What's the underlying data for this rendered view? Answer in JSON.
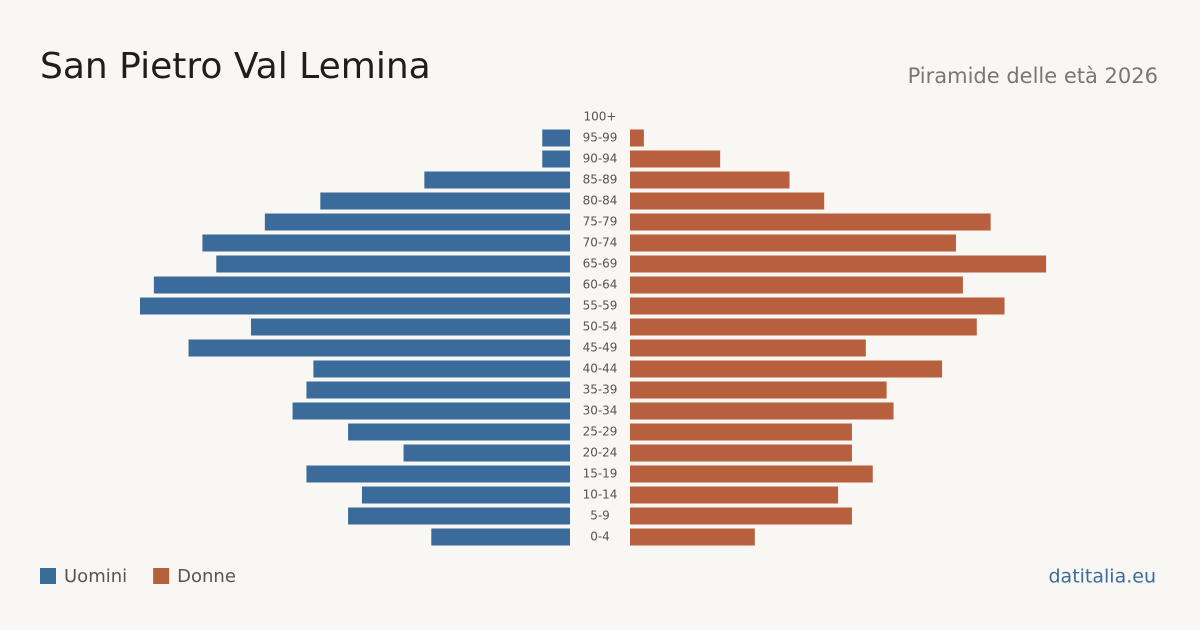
{
  "chart_data": {
    "type": "pyramid",
    "title": "San Pietro Val Lemina",
    "subtitle": "Piramide delle età 2026",
    "source": "datitalia.eu",
    "categories": [
      "100+",
      "95-99",
      "90-94",
      "85-89",
      "80-84",
      "75-79",
      "70-74",
      "65-69",
      "60-64",
      "55-59",
      "50-54",
      "45-49",
      "40-44",
      "35-39",
      "30-34",
      "25-29",
      "20-24",
      "15-19",
      "10-14",
      "5-9",
      "0-4"
    ],
    "series": [
      {
        "name": "Uomini",
        "color": "#3b6b9b",
        "values": [
          0,
          4,
          4,
          21,
          36,
          44,
          53,
          51,
          60,
          62,
          46,
          55,
          37,
          38,
          40,
          32,
          24,
          38,
          30,
          32,
          20
        ]
      },
      {
        "name": "Donne",
        "color": "#b85f3e",
        "values": [
          0,
          2,
          13,
          23,
          28,
          52,
          47,
          60,
          48,
          54,
          50,
          34,
          45,
          37,
          38,
          32,
          32,
          35,
          30,
          32,
          18
        ]
      }
    ]
  }
}
